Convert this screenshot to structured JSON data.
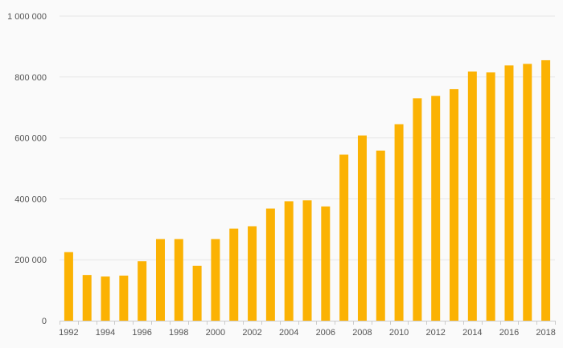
{
  "chart_data": {
    "type": "bar",
    "title": "",
    "xlabel": "",
    "ylabel": "",
    "categories": [
      "1992",
      "1993",
      "1994",
      "1995",
      "1996",
      "1997",
      "1998",
      "1999",
      "2000",
      "2001",
      "2002",
      "2003",
      "2004",
      "2005",
      "2006",
      "2007",
      "2008",
      "2009",
      "2010",
      "2011",
      "2012",
      "2013",
      "2014",
      "2015",
      "2016",
      "2017",
      "2018"
    ],
    "x_tick_labels": [
      "1992",
      "1994",
      "1996",
      "1998",
      "2000",
      "2002",
      "2004",
      "2006",
      "2008",
      "2010",
      "2012",
      "2014",
      "2016",
      "2018"
    ],
    "values": [
      225000,
      150000,
      145000,
      148000,
      195000,
      268000,
      268000,
      180000,
      268000,
      302000,
      310000,
      368000,
      392000,
      395000,
      375000,
      545000,
      608000,
      558000,
      645000,
      730000,
      738000,
      760000,
      818000,
      815000,
      838000,
      843000,
      855000
    ],
    "ylim": [
      0,
      1000000
    ],
    "y_ticks": [
      0,
      200000,
      400000,
      600000,
      800000,
      1000000
    ],
    "y_tick_labels": [
      "0",
      "200 000",
      "400 000",
      "600 000",
      "800 000",
      "1 000 000"
    ],
    "grid": true,
    "legend": "none",
    "colors": {
      "bar": "#fbb203",
      "grid": "#e6e6e6",
      "axis": "#cccccc",
      "text": "#555555",
      "background": "#fafafa"
    }
  }
}
